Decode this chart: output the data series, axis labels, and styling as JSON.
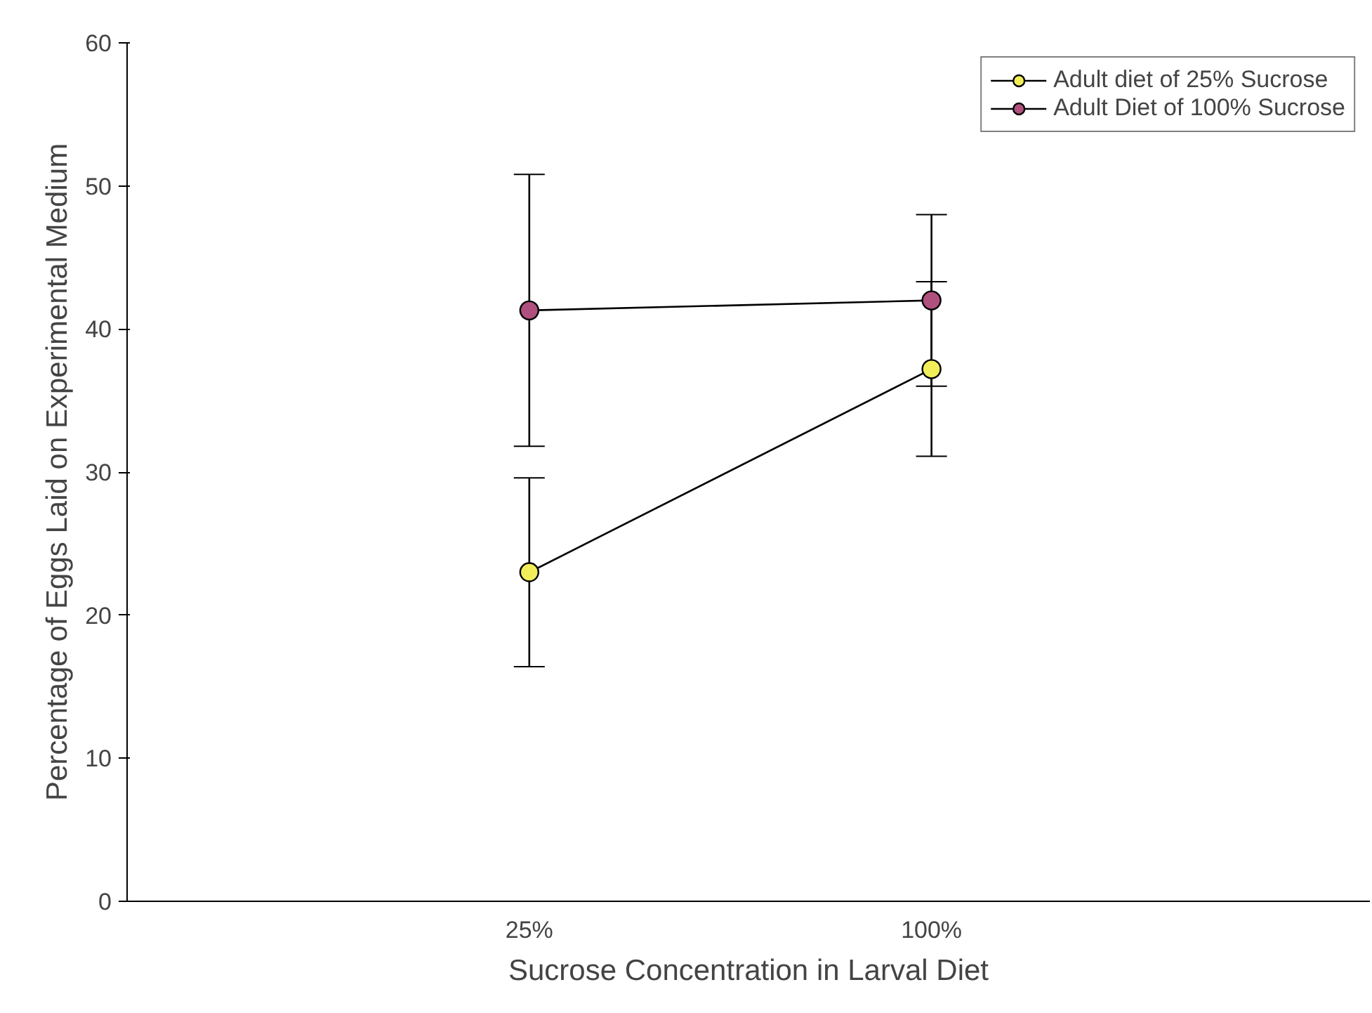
{
  "chart_data": {
    "type": "line",
    "xlabel": "Sucrose Concentration in Larval Diet",
    "ylabel": "Percentage of Eggs Laid on Experimental Medium",
    "categories": [
      "25%",
      "100%"
    ],
    "series": [
      {
        "name": "Adult diet of 25% Sucrose",
        "color": "#f2ee5a",
        "values": [
          23.0,
          37.2
        ],
        "errors": [
          6.6,
          6.1
        ]
      },
      {
        "name": "Adult Diet of 100% Sucrose",
        "color": "#b0507e",
        "values": [
          41.3,
          42.0
        ],
        "errors": [
          9.5,
          6.0
        ]
      }
    ],
    "ylim": [
      0,
      60
    ],
    "yticks": [
      0,
      10,
      20,
      30,
      40,
      50,
      60
    ],
    "grid": false,
    "legend": "top right",
    "marker": "circle",
    "line_style": "solid"
  }
}
